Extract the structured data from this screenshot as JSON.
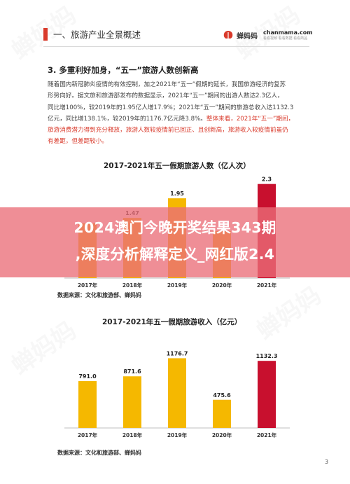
{
  "header": {
    "title": "一、旅游产业全景概述",
    "logo_cn": "蝉妈妈",
    "logo_en": "chanmama.com",
    "logo_sub": "看看视频 看看数据 看看商品"
  },
  "section": {
    "title": "3. 多重利好加身，“五一”旅游人数创新高",
    "paragraph_lines": [
      "随着国内新冠肺炎疫情的有效控制，加之2021年“五一”假期的延长，我国旅游经济的复苏",
      "形势向好。据文旅和旅游部发布的数据显示，2021年“五一”期间的出游人数达2.3亿人，",
      "同比增100%，较2019年的1.95亿人增17.9%；2021年“五一”期间的旅游总收入达1132.3",
      "亿元，同比增138.1%，较2019年的1176.7亿元降3.8%。",
      "整体来看，2021年“五一”期间，",
      "旅游消费潜力得到充分释放，旅游人数较疫情前已回正、且创新高，旅游收入较疫情前虽仍",
      "有差距，但差距较小。"
    ]
  },
  "banner": {
    "line1": "2024澳门今晚开奖结果343期",
    "line2": ",深度分析解释定义_网红版2.4"
  },
  "chart_data": [
    {
      "type": "bar",
      "title": "2017-2021年五一假期旅游人数（亿人次）",
      "categories": [
        "2017年",
        "2018年",
        "2019年",
        "2020年",
        "2021年"
      ],
      "values": [
        1.34,
        1.47,
        1.95,
        1.15,
        2.3
      ],
      "labels": [
        "",
        "1.47",
        "1.95",
        "",
        "2.3"
      ],
      "colors": [
        "#f5b800",
        "#f5b800",
        "#f5b800",
        "#f5b800",
        "#c8102e"
      ],
      "ylim": [
        0,
        2.5
      ],
      "source": "数据来源：文化和旅游部、蝉妈妈"
    },
    {
      "type": "bar",
      "title": "2017-2021年五一假期旅游收入（亿元）",
      "categories": [
        "2017年",
        "2018年",
        "2019年",
        "2020年",
        "2021年"
      ],
      "values": [
        791.0,
        871.6,
        1176.7,
        475.6,
        1132.3
      ],
      "labels": [
        "791.0",
        "871.6",
        "1176.7",
        "475.6",
        "1132.3"
      ],
      "colors": [
        "#f5b800",
        "#f5b800",
        "#f5b800",
        "#f5b800",
        "#c8102e"
      ],
      "ylim": [
        0,
        1300
      ],
      "source": "数据来源：文化和旅游部、蝉妈妈"
    }
  ],
  "page_number": "3"
}
